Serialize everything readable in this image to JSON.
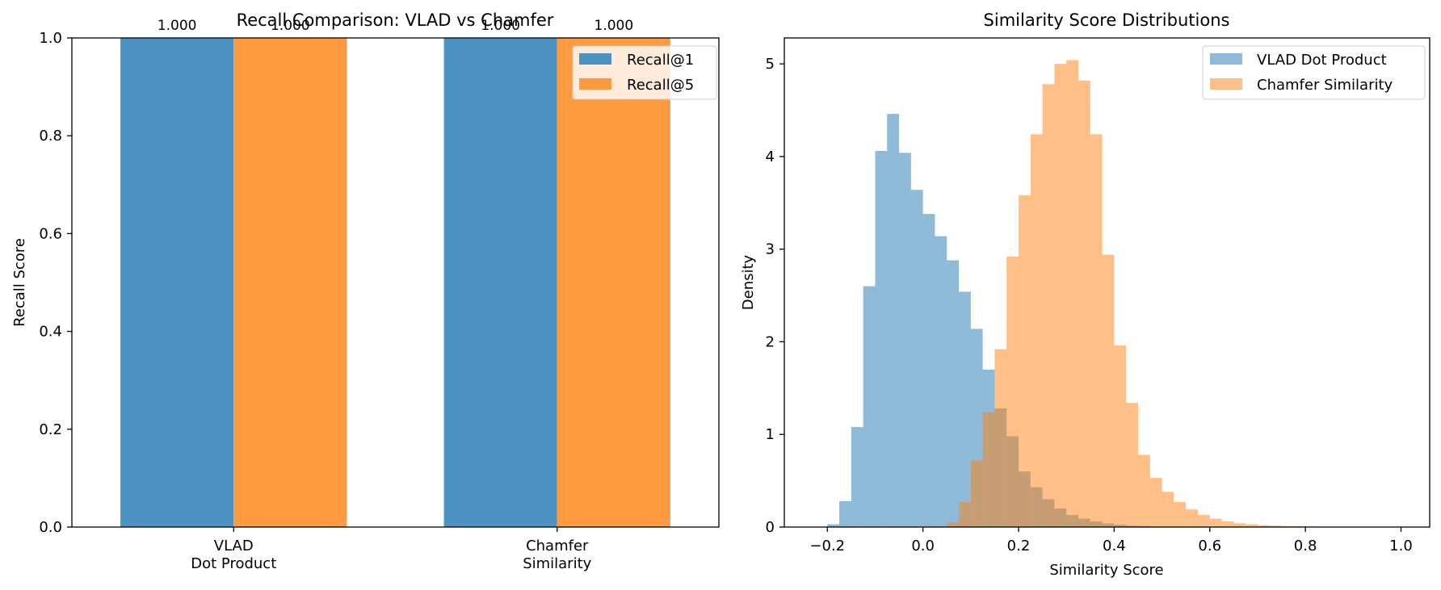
{
  "chart_data": [
    {
      "type": "bar",
      "title": "Recall Comparison: VLAD vs Chamfer",
      "xlabel": "",
      "ylabel": "Recall Score",
      "categories": [
        "VLAD\nDot Product",
        "Chamfer\nSimilarity"
      ],
      "series": [
        {
          "name": "Recall@1",
          "values": [
            1.0,
            1.0
          ],
          "color": "#4c93c4"
        },
        {
          "name": "Recall@5",
          "values": [
            1.0,
            1.0
          ],
          "color": "#ff9a40"
        }
      ],
      "data_labels": [
        "1.000",
        "1.000",
        "1.000",
        "1.000"
      ],
      "ylim": [
        0,
        1.0
      ],
      "yticks": [
        "0.0",
        "0.2",
        "0.4",
        "0.6",
        "0.8",
        "1.0"
      ],
      "legend": "top-right",
      "grid": false
    },
    {
      "type": "histogram",
      "title": "Similarity Score Distributions",
      "xlabel": "Similarity Score",
      "ylabel": "Density",
      "xlim": [
        -0.29,
        1.06
      ],
      "ylim": [
        0,
        5.28
      ],
      "xticks": [
        "−0.2",
        "0.0",
        "0.2",
        "0.4",
        "0.6",
        "0.8",
        "1.0"
      ],
      "yticks": [
        "0",
        "1",
        "2",
        "3",
        "4",
        "5"
      ],
      "legend": "top-right",
      "grid": false,
      "bin_width": 0.025,
      "series": [
        {
          "name": "VLAD Dot Product",
          "color": "#1f77b4",
          "alpha": 0.5,
          "bin_start": -0.2,
          "densities": [
            0.03,
            0.28,
            1.08,
            2.6,
            4.06,
            4.46,
            4.04,
            3.64,
            3.38,
            3.14,
            2.88,
            2.54,
            2.14,
            1.7,
            1.28,
            0.98,
            0.6,
            0.43,
            0.3,
            0.2,
            0.13,
            0.09,
            0.06,
            0.04,
            0.025,
            0.015,
            0.01,
            0.005,
            0.003
          ]
        },
        {
          "name": "Chamfer Similarity",
          "color": "#ff7f0e",
          "alpha": 0.5,
          "bin_start": 0.05,
          "densities": [
            0.05,
            0.27,
            0.72,
            1.24,
            1.92,
            2.92,
            3.58,
            4.24,
            4.78,
            5.0,
            5.04,
            4.82,
            4.24,
            2.94,
            1.96,
            1.34,
            0.78,
            0.53,
            0.38,
            0.27,
            0.19,
            0.13,
            0.09,
            0.06,
            0.04,
            0.03,
            0.02,
            0.015,
            0.01,
            0.008,
            0.005,
            0.004,
            0.003,
            0.002,
            0.002,
            0.001,
            0.001,
            0.001
          ]
        }
      ]
    }
  ]
}
